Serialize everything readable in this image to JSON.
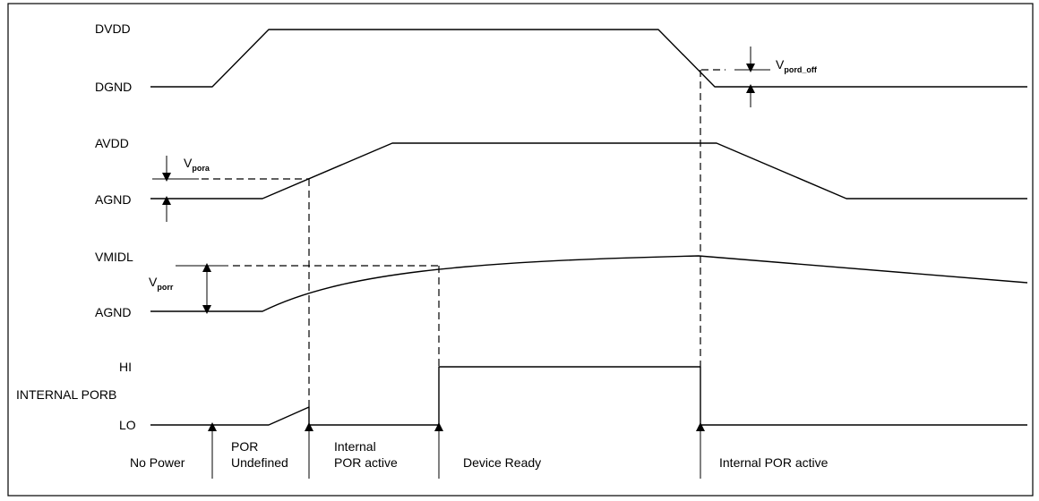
{
  "signals": {
    "dvdd": "DVDD",
    "dgnd": "DGND",
    "avdd": "AVDD",
    "agnd_1": "AGND",
    "vmidl": "VMIDL",
    "agnd_2": "AGND",
    "hi": "HI",
    "internal_porb": "INTERNAL PORB",
    "lo": "LO"
  },
  "thresholds": {
    "vpord_off": {
      "base": "V",
      "sub": "pord_off"
    },
    "vpora": {
      "base": "V",
      "sub": "pora"
    },
    "vporr": {
      "base": "V",
      "sub": "porr"
    }
  },
  "phases": {
    "no_power": "No Power",
    "por_undefined_1": "POR",
    "por_undefined_2": "Undefined",
    "internal_por_1": "Internal",
    "internal_por_2": "POR active",
    "device_ready": "Device Ready",
    "internal_por_late": "Internal POR active"
  }
}
